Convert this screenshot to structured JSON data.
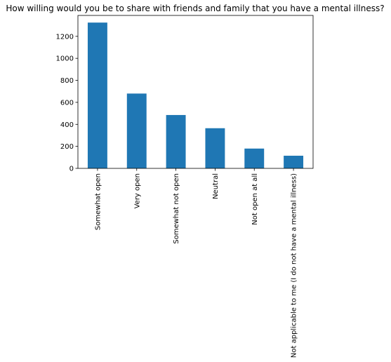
{
  "chart_data": {
    "type": "bar",
    "title": "How willing would you be to share with friends and family that you have a mental illness?",
    "xlabel": "",
    "ylabel": "",
    "categories": [
      "Somewhat open",
      "Very open",
      "Somewhat not open",
      "Neutral",
      "Not open at all",
      "Not applicable to me (I do not have a mental illness)"
    ],
    "values": [
      1325,
      680,
      485,
      365,
      180,
      115
    ],
    "yticks": [
      0,
      200,
      400,
      600,
      800,
      1000,
      1200
    ],
    "ylim": [
      0,
      1390
    ],
    "bar_color": "#1f77b4",
    "grid": false,
    "legend": "none"
  }
}
